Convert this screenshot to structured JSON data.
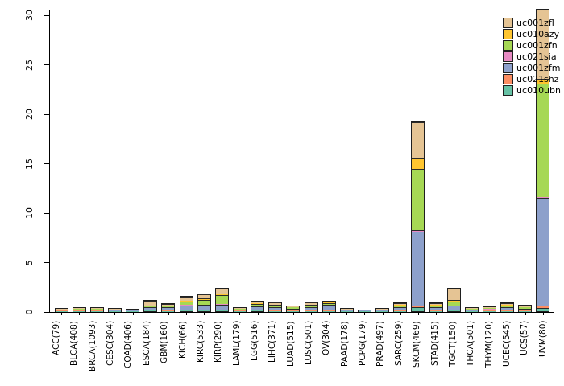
{
  "chart_data": {
    "type": "bar",
    "stacked": true,
    "title": "",
    "xlabel": "",
    "ylabel": "",
    "ylim": [
      0,
      30
    ],
    "ydraw_max": 30.6,
    "yticks": [
      0,
      5,
      10,
      15,
      20,
      25,
      30
    ],
    "grid": false,
    "legend_position": "top-right",
    "legend_entries_top_to_bottom": [
      "uc001zfl",
      "uc010azy",
      "uc001zfn",
      "uc021sia",
      "uc001zfm",
      "uc021shz",
      "uc010ubn"
    ],
    "categories": [
      "ACC(79)",
      "BLCA(408)",
      "BRCA(1093)",
      "CESC(304)",
      "COAD(406)",
      "ESCA(184)",
      "GBM(160)",
      "KICH(66)",
      "KIRC(533)",
      "KIRP(290)",
      "LAML(179)",
      "LGG(516)",
      "LIHC(371)",
      "LUAD(515)",
      "LUSC(501)",
      "OV(304)",
      "PAAD(178)",
      "PCPG(179)",
      "PRAD(497)",
      "SARC(259)",
      "SKCM(469)",
      "STAD(415)",
      "TGCT(150)",
      "THCA(501)",
      "THYM(120)",
      "UCEC(545)",
      "UCS(57)",
      "UVM(80)"
    ],
    "series_bottom_to_top": [
      {
        "name": "uc010ubn",
        "color": "#66C2A5",
        "values": [
          0.03,
          0.03,
          0.03,
          0.02,
          0.02,
          0.05,
          0.04,
          0.05,
          0.05,
          0.05,
          0.03,
          0.05,
          0.04,
          0.03,
          0.04,
          0.04,
          0.02,
          0.01,
          0.02,
          0.04,
          0.4,
          0.04,
          0.05,
          0.02,
          0.03,
          0.04,
          0.03,
          0.35
        ]
      },
      {
        "name": "uc021shz",
        "color": "#FC8D62",
        "values": [
          0.02,
          0.03,
          0.02,
          0.02,
          0.01,
          0.03,
          0.03,
          0.05,
          0.05,
          0.05,
          0.02,
          0.03,
          0.03,
          0.02,
          0.03,
          0.03,
          0.01,
          0.01,
          0.01,
          0.03,
          0.15,
          0.03,
          0.04,
          0.02,
          0.02,
          0.03,
          0.02,
          0.1
        ]
      },
      {
        "name": "uc001zfm",
        "color": "#8DA0CB",
        "values": [
          0.08,
          0.1,
          0.1,
          0.08,
          0.05,
          0.3,
          0.3,
          0.5,
          0.55,
          0.55,
          0.1,
          0.4,
          0.35,
          0.2,
          0.35,
          0.6,
          0.08,
          0.04,
          0.08,
          0.3,
          7.5,
          0.3,
          0.45,
          0.1,
          0.15,
          0.3,
          0.2,
          11.0
        ]
      },
      {
        "name": "uc021sia",
        "color": "#E78AC3",
        "values": [
          0,
          0,
          0.01,
          0,
          0,
          0.02,
          0.02,
          0.03,
          0.03,
          0.05,
          0,
          0.02,
          0.02,
          0.01,
          0.02,
          0.02,
          0,
          0,
          0,
          0.02,
          0.15,
          0.02,
          0.03,
          0.01,
          0.01,
          0.02,
          0.01,
          0.1
        ]
      },
      {
        "name": "uc001zfn",
        "color": "#A6D854",
        "values": [
          0.05,
          0.06,
          0.06,
          0.05,
          0.03,
          0.15,
          0.15,
          0.35,
          0.45,
          0.9,
          0.06,
          0.25,
          0.2,
          0.12,
          0.2,
          0.15,
          0.05,
          0.03,
          0.05,
          0.18,
          6.2,
          0.18,
          0.4,
          0.06,
          0.1,
          0.2,
          0.12,
          11.5
        ]
      },
      {
        "name": "uc010azy",
        "color": "#FFC52F",
        "values": [
          0,
          0.02,
          0.02,
          0.02,
          0.01,
          0.05,
          0.05,
          0.12,
          0.15,
          0.2,
          0.02,
          0.05,
          0.05,
          0.03,
          0.05,
          0.03,
          0.01,
          0,
          0.01,
          0.05,
          1.1,
          0.06,
          0.2,
          0.02,
          0.03,
          0.06,
          0.04,
          0.5
        ]
      },
      {
        "name": "uc001zfl",
        "color": "#E5C494",
        "values": [
          0.05,
          0.06,
          0.06,
          0.05,
          0.03,
          0.45,
          0.15,
          0.4,
          0.45,
          0.5,
          0.08,
          0.2,
          0.2,
          0.12,
          0.2,
          0.15,
          0.05,
          0.03,
          0.05,
          0.2,
          3.6,
          0.2,
          1.1,
          0.08,
          0.1,
          0.2,
          0.12,
          7.0
        ]
      }
    ]
  }
}
